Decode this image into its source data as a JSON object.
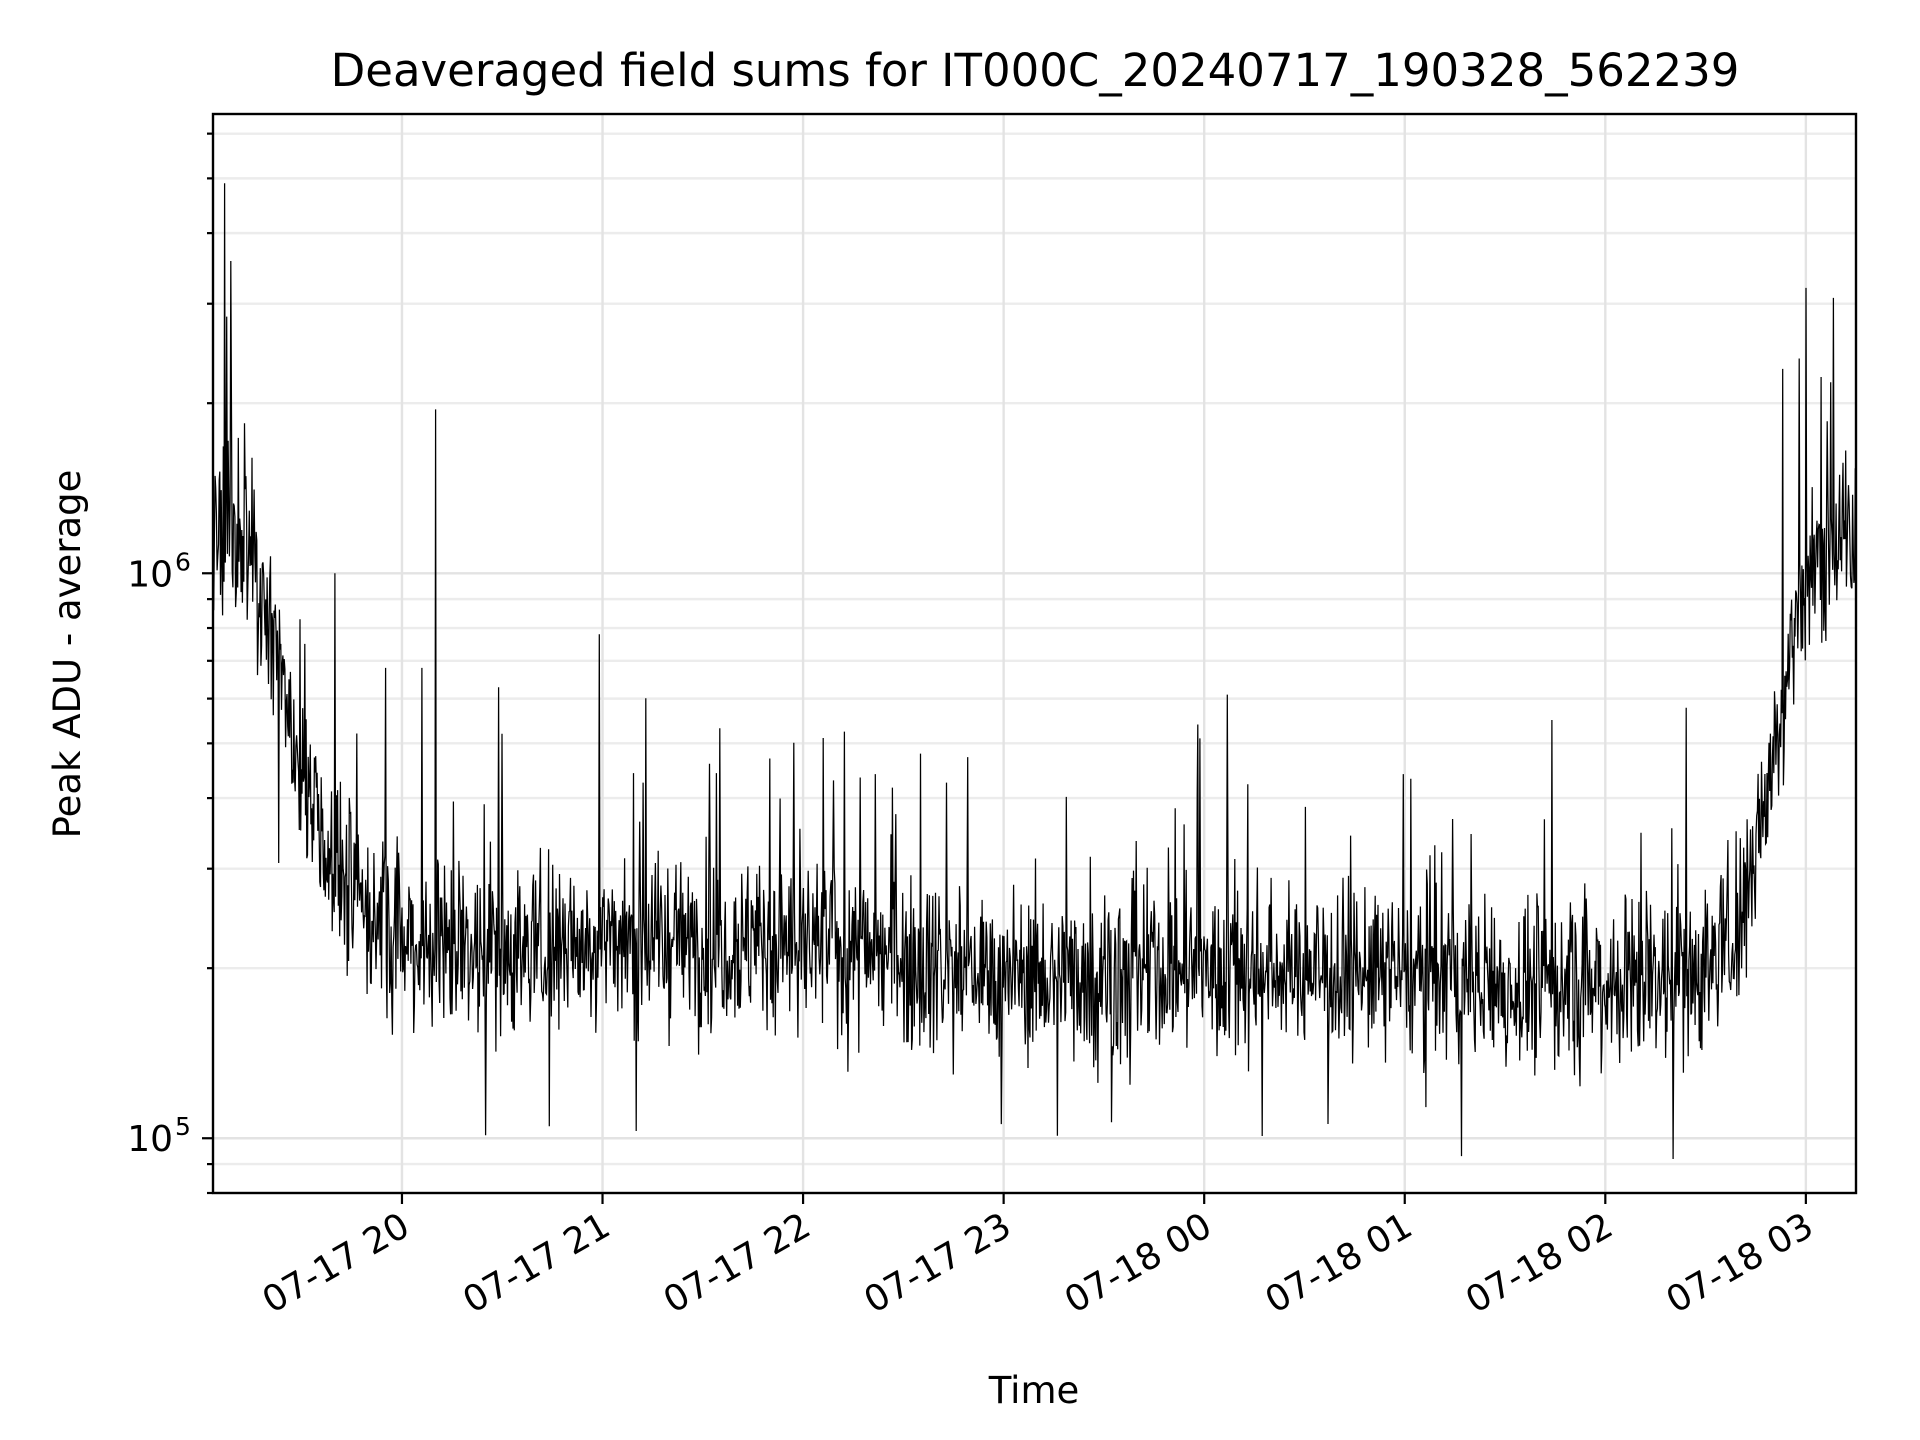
{
  "chart_data": {
    "type": "line",
    "title": "Deaveraged field sums for IT000C_20240717_190328_562239",
    "xlabel": "Time",
    "ylabel": "Peak ADU - average",
    "yscale": "log",
    "ylim": [
      80000,
      6500000
    ],
    "xlim": [
      "2024-07-17 19:03:28",
      "2024-07-18 03:15:00"
    ],
    "grid": true,
    "x_ticks": [
      {
        "t": "2024-07-17 20:00",
        "label": "07-17 20"
      },
      {
        "t": "2024-07-17 21:00",
        "label": "07-17 21"
      },
      {
        "t": "2024-07-17 22:00",
        "label": "07-17 22"
      },
      {
        "t": "2024-07-17 23:00",
        "label": "07-17 23"
      },
      {
        "t": "2024-07-18 00:00",
        "label": "07-18 00"
      },
      {
        "t": "2024-07-18 01:00",
        "label": "07-18 01"
      },
      {
        "t": "2024-07-18 02:00",
        "label": "07-18 02"
      },
      {
        "t": "2024-07-18 03:00",
        "label": "07-18 03"
      }
    ],
    "y_ticks": [
      {
        "value": 100000,
        "base": "10",
        "exp": "5"
      },
      {
        "value": 1000000,
        "base": "10",
        "exp": "6"
      }
    ],
    "series": [
      {
        "color": "#000000",
        "baseline": [
          [
            "2024-07-17 19:03:28",
            1150000
          ],
          [
            "2024-07-17 19:15",
            1150000
          ],
          [
            "2024-07-17 19:22",
            780000
          ],
          [
            "2024-07-17 19:28",
            480000
          ],
          [
            "2024-07-17 19:35",
            350000
          ],
          [
            "2024-07-17 19:45",
            270000
          ],
          [
            "2024-07-17 20:00",
            225000
          ],
          [
            "2024-07-17 20:30",
            215000
          ],
          [
            "2024-07-17 21:00",
            225000
          ],
          [
            "2024-07-17 21:30",
            225000
          ],
          [
            "2024-07-17 22:00",
            220000
          ],
          [
            "2024-07-17 22:30",
            210000
          ],
          [
            "2024-07-17 23:00",
            195000
          ],
          [
            "2024-07-17 23:30",
            195000
          ],
          [
            "2024-07-18 00:00",
            200000
          ],
          [
            "2024-07-18 00:30",
            200000
          ],
          [
            "2024-07-18 01:00",
            195000
          ],
          [
            "2024-07-18 01:30",
            185000
          ],
          [
            "2024-07-18 02:00",
            190000
          ],
          [
            "2024-07-18 02:30",
            200000
          ],
          [
            "2024-07-18 02:40",
            240000
          ],
          [
            "2024-07-18 02:45",
            320000
          ],
          [
            "2024-07-18 02:50",
            480000
          ],
          [
            "2024-07-18 02:55",
            700000
          ],
          [
            "2024-07-18 03:00",
            950000
          ],
          [
            "2024-07-18 03:05",
            1150000
          ],
          [
            "2024-07-18 03:15:00",
            1150000
          ]
        ],
        "spikes": [
          [
            "2024-07-17 19:07",
            4900000
          ],
          [
            "2024-07-17 19:09",
            1900000
          ],
          [
            "2024-07-17 19:31",
            750000
          ],
          [
            "2024-07-17 19:40",
            1000000
          ],
          [
            "2024-07-17 19:55",
            680000
          ],
          [
            "2024-07-17 20:06",
            680000
          ],
          [
            "2024-07-17 20:10",
            1950000
          ],
          [
            "2024-07-17 20:30",
            520000
          ],
          [
            "2024-07-17 20:59",
            780000
          ],
          [
            "2024-07-17 21:10",
            620000
          ],
          [
            "2024-07-17 21:32",
            460000
          ],
          [
            "2024-07-17 21:50",
            470000
          ],
          [
            "2024-07-17 22:09",
            430000
          ],
          [
            "2024-07-17 22:17",
            435000
          ],
          [
            "2024-07-17 23:58",
            540000
          ],
          [
            "2024-07-18 00:07",
            610000
          ],
          [
            "2024-07-18 01:44",
            550000
          ],
          [
            "2024-07-18 03:00",
            3200000
          ],
          [
            "2024-07-18 02:58",
            2400000
          ],
          [
            "2024-07-18 02:53",
            2300000
          ],
          [
            "2024-07-17 20:44",
            105000
          ],
          [
            "2024-07-17 21:10",
            103000
          ],
          [
            "2024-07-17 23:16",
            101000
          ],
          [
            "2024-07-18 01:17",
            93000
          ],
          [
            "2024-07-18 00:37",
            106000
          ]
        ]
      }
    ]
  }
}
